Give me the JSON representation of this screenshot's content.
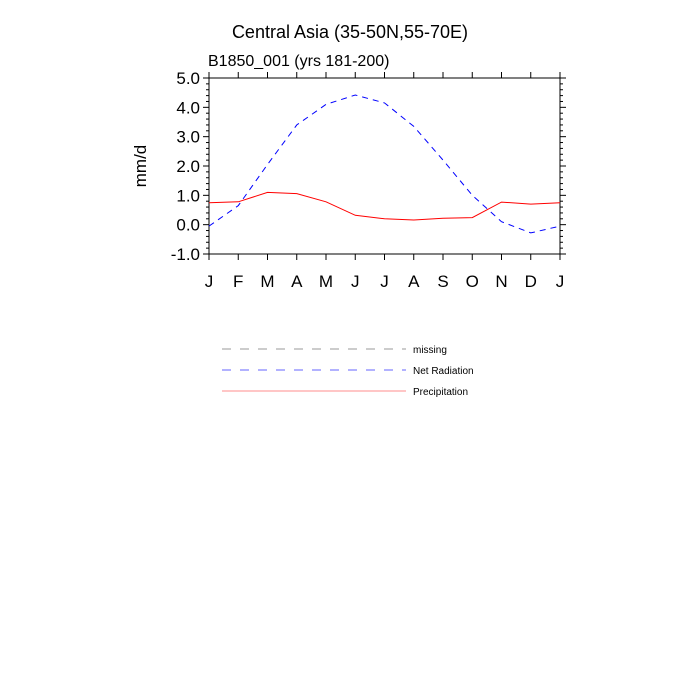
{
  "chart_data": {
    "type": "line",
    "title": "Central Asia (35-50N,55-70E)",
    "subtitle": "B1850_001 (yrs 181-200)",
    "xlabel": "",
    "ylabel": "mm/d",
    "ylim": [
      -1.0,
      5.0
    ],
    "y_ticks": [
      "5.0",
      "4.0",
      "3.0",
      "2.0",
      "1.0",
      "0.0",
      "-1.0"
    ],
    "x_ticks": [
      "J",
      "F",
      "M",
      "A",
      "M",
      "J",
      "J",
      "A",
      "S",
      "O",
      "N",
      "D",
      "J"
    ],
    "grid": false,
    "legend_position": "bottom",
    "series": [
      {
        "name": "missing",
        "color": "#999999",
        "dash": "dashed",
        "values": []
      },
      {
        "name": "Net Radiation",
        "color": "#0000ff",
        "dash": "dashed",
        "values": [
          -0.05,
          0.65,
          2.05,
          3.4,
          4.1,
          4.42,
          4.15,
          3.35,
          2.2,
          1.0,
          0.1,
          -0.28,
          -0.05
        ]
      },
      {
        "name": "Precipitation",
        "color": "#ff0000",
        "dash": "solid",
        "values": [
          0.75,
          0.78,
          1.1,
          1.06,
          0.78,
          0.32,
          0.2,
          0.16,
          0.22,
          0.24,
          0.77,
          0.7,
          0.75
        ]
      }
    ]
  }
}
